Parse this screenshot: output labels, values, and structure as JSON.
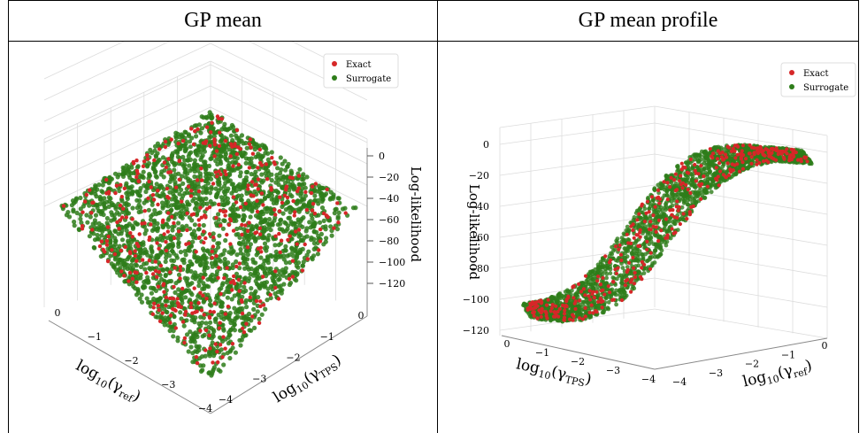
{
  "table": {
    "headers": [
      "GP mean",
      "GP mean profile"
    ]
  },
  "chart_data": [
    {
      "type": "scatter",
      "subtype": "3d-scatter",
      "title": "GP mean",
      "legend": {
        "placement": "top-right",
        "entries": [
          "Exact",
          "Surrogate"
        ]
      },
      "colors": {
        "Exact": "#d62728",
        "Surrogate": "#2e7d1a"
      },
      "axes": {
        "x": {
          "label": "log10(γref)",
          "ticks": [
            "0",
            "−1",
            "−2",
            "−3",
            "−4"
          ],
          "range": [
            -4,
            0
          ]
        },
        "y": {
          "label": "log10(γTPS)",
          "ticks": [
            "0",
            "−1",
            "−2",
            "−3",
            "−4"
          ],
          "range": [
            -4,
            0
          ]
        },
        "z": {
          "label": "Log-likelihood",
          "ticks": [
            "0",
            "−20",
            "−40",
            "−60",
            "−80",
            "−100",
            "−120"
          ],
          "range": [
            -130,
            0
          ]
        }
      },
      "grid": true,
      "view": "top-oblique"
    },
    {
      "type": "scatter",
      "subtype": "3d-scatter",
      "title": "GP mean profile",
      "legend": {
        "placement": "top-right",
        "entries": [
          "Exact",
          "Surrogate"
        ]
      },
      "colors": {
        "Exact": "#d62728",
        "Surrogate": "#2e7d1a"
      },
      "axes": {
        "x": {
          "label": "log10(γTPS)",
          "ticks": [
            "0",
            "−1",
            "−2",
            "−3",
            "−4"
          ],
          "range": [
            -4,
            0
          ]
        },
        "y": {
          "label": "log10(γref)",
          "ticks": [
            "−4",
            "−3",
            "−2",
            "−1",
            "0"
          ],
          "range": [
            -4,
            0
          ]
        },
        "z": {
          "label": "Log-likelihood",
          "ticks": [
            "0",
            "−20",
            "−40",
            "−60",
            "−80",
            "−100",
            "−120"
          ],
          "range": [
            -130,
            0
          ]
        }
      },
      "grid": true,
      "view": "side"
    }
  ]
}
